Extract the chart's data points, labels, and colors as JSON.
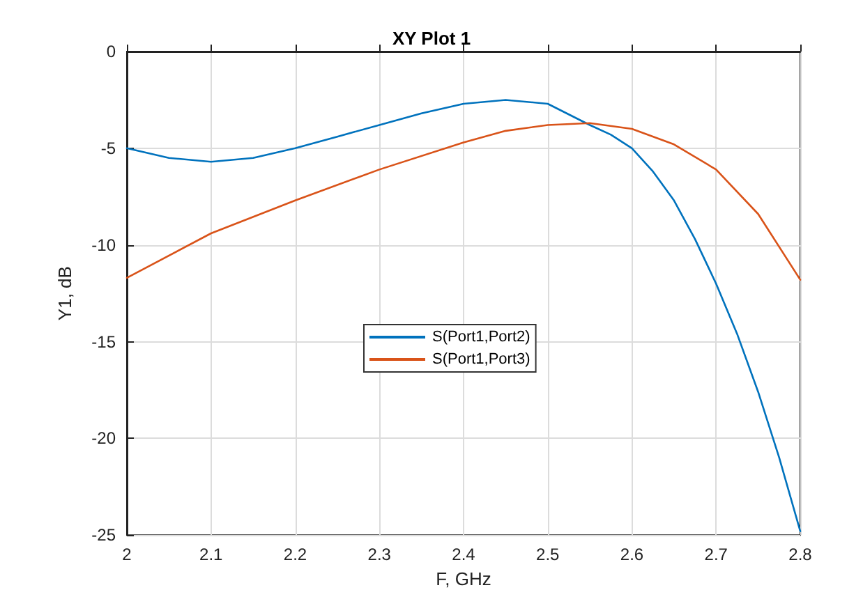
{
  "chart_data": {
    "type": "line",
    "title": "XY Plot 1",
    "xlabel": "F, GHz",
    "ylabel": "Y1, dB",
    "xlim": [
      2,
      2.8
    ],
    "xticks": [
      2,
      2.1,
      2.2,
      2.3,
      2.4,
      2.5,
      2.6,
      2.7,
      2.8
    ],
    "ylim": [
      -25,
      0
    ],
    "yticks": [
      -25,
      -20,
      -15,
      -10,
      -5,
      0
    ],
    "grid": true,
    "legend": "center",
    "marker": "none",
    "line_style": "solid",
    "series": [
      {
        "name": "S(Port1,Port2)",
        "color": "#0072bd",
        "x": [
          2,
          2.05,
          2.1,
          2.15,
          2.2,
          2.25,
          2.3,
          2.35,
          2.4,
          2.45,
          2.5,
          2.55,
          2.575,
          2.6,
          2.625,
          2.65,
          2.675,
          2.7,
          2.725,
          2.75,
          2.775,
          2.8
        ],
        "values": [
          -5.0,
          -5.5,
          -5.7,
          -5.5,
          -5.0,
          -4.4,
          -3.8,
          -3.2,
          -2.7,
          -2.5,
          -2.7,
          -3.8,
          -4.3,
          -5.0,
          -6.2,
          -7.7,
          -9.7,
          -12.0,
          -14.6,
          -17.6,
          -21.0,
          -24.8
        ]
      },
      {
        "name": "S(Port1,Port3)",
        "color": "#d95319",
        "x": [
          2,
          2.1,
          2.2,
          2.3,
          2.4,
          2.45,
          2.5,
          2.55,
          2.6,
          2.65,
          2.7,
          2.75,
          2.8
        ],
        "values": [
          -11.7,
          -9.4,
          -7.7,
          -6.1,
          -4.7,
          -4.1,
          -3.8,
          -3.7,
          -4.0,
          -4.8,
          -6.1,
          -8.4,
          -11.8
        ]
      }
    ]
  }
}
